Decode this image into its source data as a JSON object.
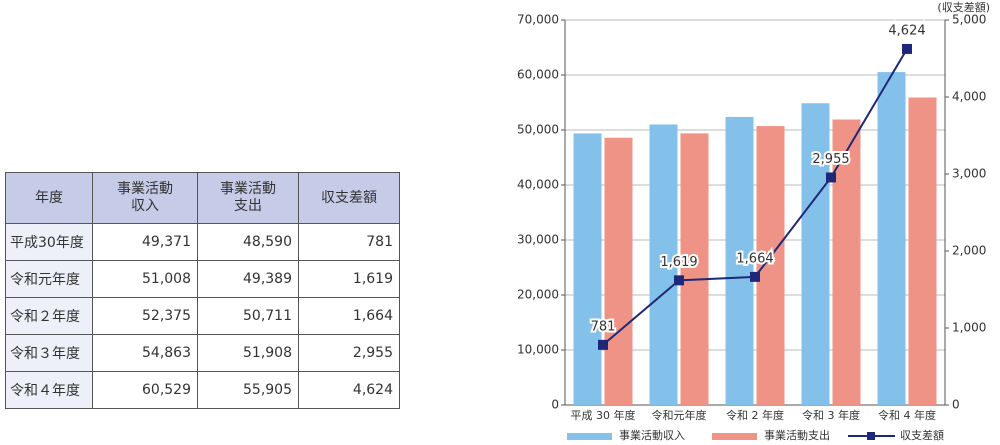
{
  "table": {
    "header": [
      "年度",
      "事業活動\n収入",
      "事業活動\n支出",
      "収支差額"
    ],
    "rows": [
      [
        "平成30年度",
        "49,371",
        "48,590",
        "781"
      ],
      [
        "令和元年度",
        "51,008",
        "49,389",
        "1,619"
      ],
      [
        "令和２年度",
        "52,375",
        "50,711",
        "1,664"
      ],
      [
        "令和３年度",
        "54,863",
        "51,908",
        "2,955"
      ],
      [
        "令和４年度",
        "60,529",
        "55,905",
        "4,624"
      ]
    ]
  },
  "chart_data": {
    "type": "combo",
    "categories": [
      "平成 30 年度",
      "令和元年度",
      "令和 2 年度",
      "令和 3 年度",
      "令和 4 年度"
    ],
    "series": [
      {
        "name": "事業活動収入",
        "type": "bar",
        "color": "#84c1ea",
        "values": [
          49371,
          51008,
          52375,
          54863,
          60529
        ]
      },
      {
        "name": "事業活動支出",
        "type": "bar",
        "color": "#ef9386",
        "values": [
          48590,
          49389,
          50711,
          51908,
          55905
        ]
      },
      {
        "name": "収支差額",
        "type": "line",
        "axis": "y2",
        "color": "#1f2878",
        "values": [
          781,
          1619,
          1664,
          2955,
          4624
        ],
        "value_labels": [
          "781",
          "1,619",
          "1,664",
          "2,955",
          "4,624"
        ]
      }
    ],
    "ylim": [
      0,
      70000
    ],
    "yticks": [
      0,
      {
        "value": 10000,
        "label": "10,000"
      },
      {
        "value": 20000,
        "label": "20,000"
      },
      {
        "value": 30000,
        "label": "30,000"
      },
      {
        "value": 40000,
        "label": "40,000"
      },
      {
        "value": 50000,
        "label": "50,000"
      },
      {
        "value": 60000,
        "label": "60,000"
      },
      {
        "value": 70000,
        "label": "70,000"
      }
    ],
    "y2label": "(収支差額)",
    "y2lim": [
      0,
      5000
    ],
    "y2ticks": [
      0,
      {
        "value": 1000,
        "label": "1,000"
      },
      {
        "value": 2000,
        "label": "2,000"
      },
      {
        "value": 3000,
        "label": "3,000"
      },
      {
        "value": 4000,
        "label": "4,000"
      },
      {
        "value": 5000,
        "label": "5,000"
      }
    ],
    "grid": true,
    "legend": "bottom"
  }
}
